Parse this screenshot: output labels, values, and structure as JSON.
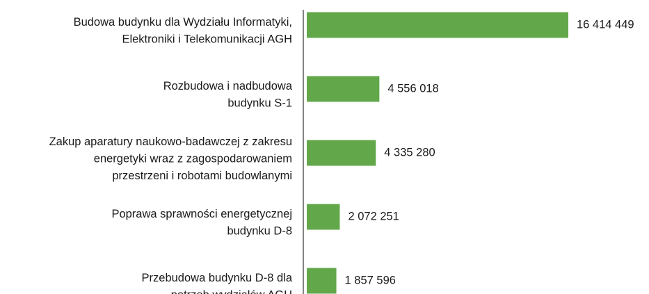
{
  "chart_data": {
    "type": "bar",
    "orientation": "horizontal",
    "categories": [
      [
        "Budowa budynku dla Wydziału Informatyki,",
        "Elektroniki i Telekomunikacji AGH"
      ],
      [
        "Rozbudowa i nadbudowa",
        "budynku S-1"
      ],
      [
        "Zakup aparatury naukowo-badawczej z zakresu",
        "energetyki wraz z zagospodarowaniem",
        "przestrzeni i robotami budowlanymi"
      ],
      [
        "Poprawa sprawności energetycznej",
        "budynku D-8"
      ],
      [
        "Przebudowa budynku D-8 dla",
        "potrzeb wydziałów AGH"
      ]
    ],
    "values": [
      16414449,
      4556018,
      4335280,
      2072251,
      1857596
    ],
    "value_labels": [
      "16 414 449",
      "4 556 018",
      "4 335 280",
      "2 072 251",
      "1 857 596"
    ],
    "color": "#62a84a"
  }
}
